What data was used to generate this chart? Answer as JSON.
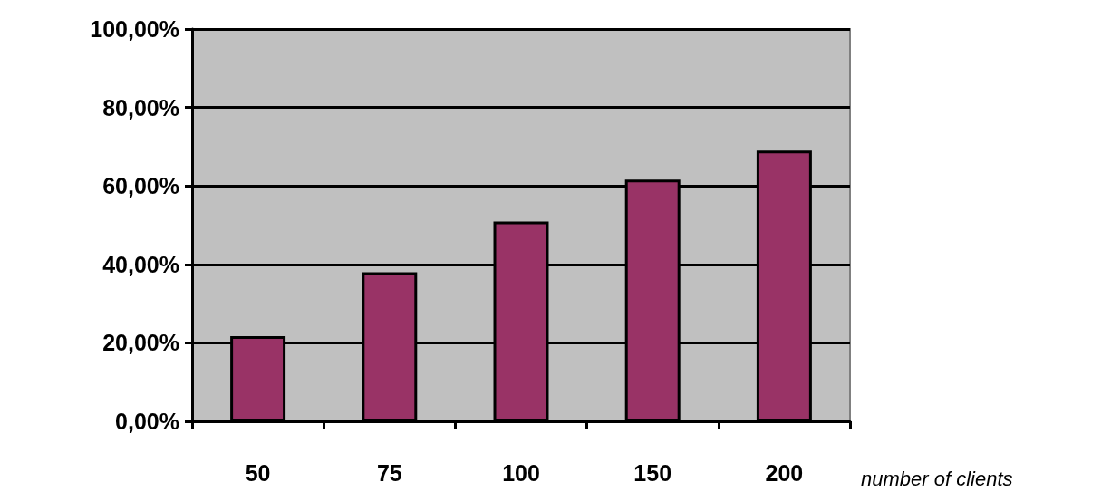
{
  "chart_data": {
    "type": "bar",
    "xlabel": "number of clients",
    "categories": [
      "50",
      "75",
      "100",
      "150",
      "200"
    ],
    "values": [
      21.7,
      38.0,
      50.9,
      61.6,
      69.0
    ],
    "color": "#993366",
    "ylim": [
      0,
      100
    ],
    "yticks": [
      {
        "value": 0,
        "label": "0,00%"
      },
      {
        "value": 20,
        "label": "20,00%"
      },
      {
        "value": 40,
        "label": "40,00%"
      },
      {
        "value": 60,
        "label": "60,00%"
      },
      {
        "value": 80,
        "label": "80,00%"
      },
      {
        "value": 100,
        "label": "100,00%"
      }
    ],
    "grid": "y"
  }
}
